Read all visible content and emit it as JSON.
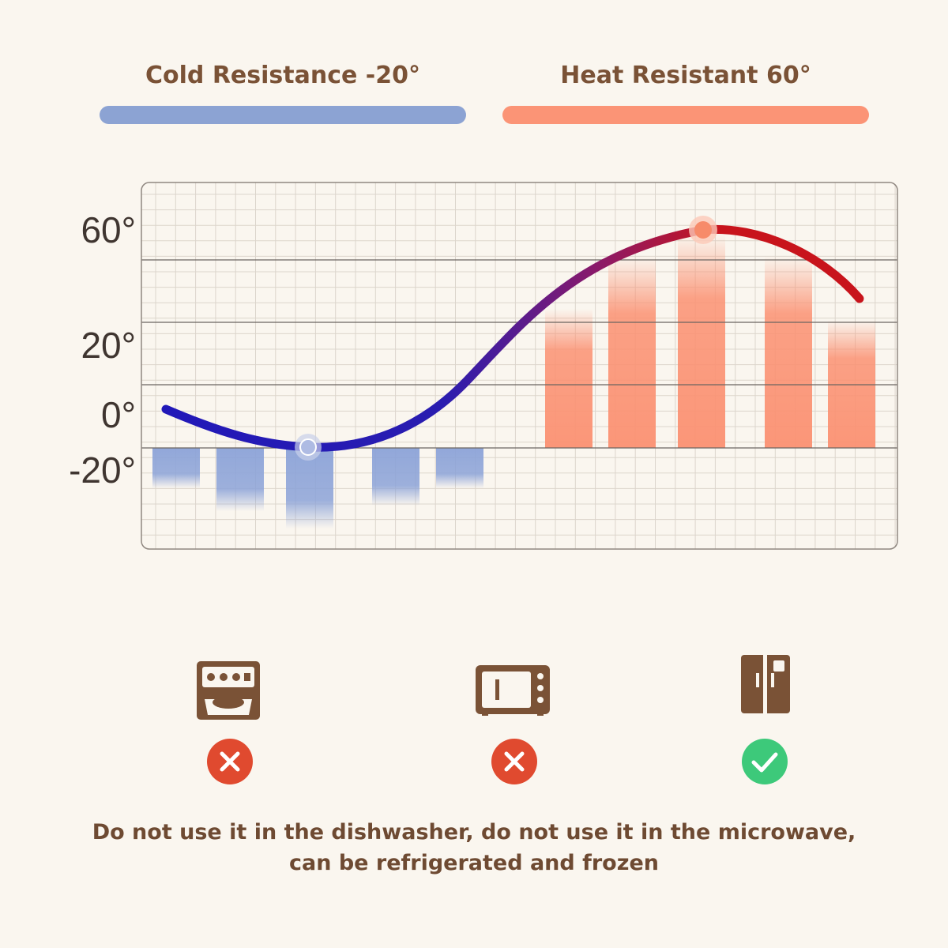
{
  "legend": {
    "cold": {
      "label": "Cold Resistance -20°",
      "color": "#8ca3d3"
    },
    "heat": {
      "label": "Heat Resistant 60°",
      "color": "#fb9476"
    }
  },
  "chart_data": {
    "type": "line",
    "title": "",
    "xlabel": "",
    "ylabel": "",
    "y_tick_labels": [
      "60°",
      "20°",
      "0°",
      "-20°"
    ],
    "curve_colors": {
      "cold": "#2118b8",
      "hot": "#c8141c"
    },
    "minimum_marker": {
      "value": -20
    },
    "maximum_marker": {
      "value": 60
    },
    "cold_bars": [
      {
        "value": -20,
        "fill_fraction": 0.35
      },
      {
        "value": -20,
        "fill_fraction": 0.55
      },
      {
        "value": -20,
        "fill_fraction": 0.7
      },
      {
        "value": -20,
        "fill_fraction": 0.5
      },
      {
        "value": -20,
        "fill_fraction": 0.35
      }
    ],
    "hot_bars": [
      {
        "value": 60,
        "fill_fraction": 0.65
      },
      {
        "value": 60,
        "fill_fraction": 0.9
      },
      {
        "value": 60,
        "fill_fraction": 1.0
      },
      {
        "value": 60,
        "fill_fraction": 0.9
      },
      {
        "value": 60,
        "fill_fraction": 0.6
      }
    ],
    "grid": true
  },
  "appliances": [
    {
      "name": "dishwasher-icon",
      "status": "not-allowed",
      "status_icon": "cross-icon",
      "status_color": "#e04a2f"
    },
    {
      "name": "microwave-icon",
      "status": "not-allowed",
      "status_icon": "cross-icon",
      "status_color": "#e04a2f"
    },
    {
      "name": "refrigerator-icon",
      "status": "allowed",
      "status_icon": "check-icon",
      "status_color": "#3dc97a"
    }
  ],
  "icon_color": "#7a5236",
  "caption": {
    "line1": "Do not use it in the dishwasher, do not use it in the microwave,",
    "line2": "can be refrigerated and frozen"
  }
}
